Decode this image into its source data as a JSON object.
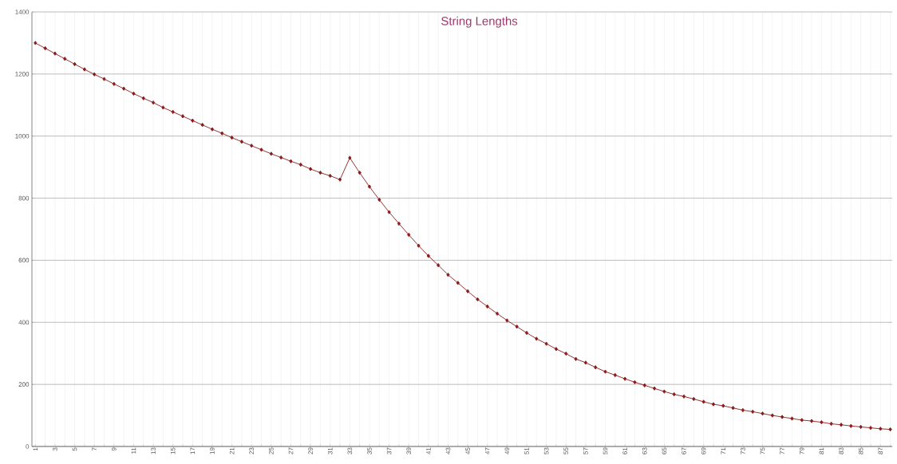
{
  "chart_data": {
    "type": "line",
    "title": "String Lengths",
    "categories": [
      "1",
      null,
      "3",
      null,
      "5",
      null,
      "7",
      null,
      "9",
      null,
      "11",
      null,
      "13",
      null,
      "15",
      null,
      "17",
      null,
      "19",
      null,
      "21",
      null,
      "23",
      null,
      "25",
      null,
      "27",
      null,
      "29",
      null,
      "31",
      null,
      "33",
      null,
      "35",
      null,
      "37",
      null,
      "39",
      null,
      "41",
      null,
      "43",
      null,
      "45",
      null,
      "47",
      null,
      "49",
      null,
      "51",
      null,
      "53",
      null,
      "55",
      null,
      "57",
      null,
      "59",
      null,
      "61",
      null,
      "63",
      null,
      "65",
      null,
      "67",
      null,
      "69",
      null,
      "71",
      null,
      "73",
      null,
      "75",
      null,
      "77",
      null,
      "79",
      null,
      "81",
      null,
      "83",
      null,
      "85",
      null,
      "87",
      null
    ],
    "values": [
      1300,
      1283,
      1266,
      1249,
      1232,
      1215,
      1199,
      1184,
      1168,
      1153,
      1137,
      1122,
      1108,
      1092,
      1078,
      1064,
      1050,
      1036,
      1022,
      1009,
      995,
      982,
      969,
      956,
      943,
      931,
      919,
      908,
      894,
      882,
      872,
      860,
      930,
      882,
      837,
      795,
      755,
      718,
      682,
      647,
      614,
      584,
      553,
      527,
      500,
      474,
      451,
      428,
      406,
      386,
      366,
      347,
      331,
      314,
      299,
      282,
      270,
      255,
      241,
      230,
      218,
      207,
      197,
      187,
      177,
      168,
      161,
      153,
      144,
      136,
      131,
      124,
      117,
      112,
      106,
      100,
      95,
      90,
      85,
      82,
      78,
      73,
      70,
      66,
      63,
      60,
      57,
      55
    ],
    "color": "#8b1a1a",
    "marker": "diamond",
    "line_style": "solid",
    "grid": true,
    "ylim": [
      0,
      1400
    ],
    "yticks": [
      0,
      200,
      400,
      600,
      800,
      1000,
      1200,
      1400
    ]
  }
}
